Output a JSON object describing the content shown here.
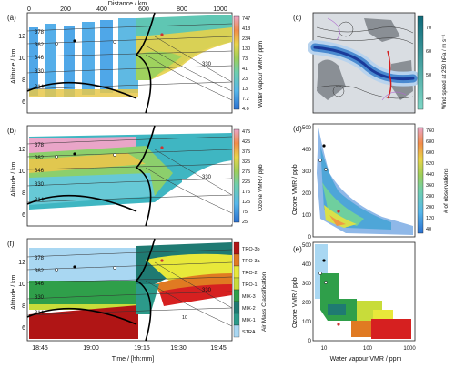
{
  "panels": {
    "a": {
      "tag": "(a)",
      "ylabel": "Altitude / km",
      "cbar_label": "Water vapour VMR / ppm",
      "cbar_ticks": [
        "747",
        "418",
        "234",
        "130",
        "73",
        "41",
        "23",
        "13",
        "7.2",
        "4.0"
      ]
    },
    "b": {
      "tag": "(b)",
      "ylabel": "Altitude / km",
      "cbar_label": "Ozone VMR / ppb",
      "cbar_ticks": [
        "475",
        "425",
        "375",
        "325",
        "275",
        "225",
        "175",
        "125",
        "75",
        "25"
      ]
    },
    "f": {
      "tag": "(f)",
      "ylabel": "Altitude / km",
      "cbar_label": "Air Mass Classification",
      "classes": [
        "TRO-3b",
        "TRO-3a",
        "TRO-2",
        "TRO-1",
        "MIX-3",
        "MIX-2",
        "MIX-1",
        "STRA"
      ]
    },
    "c": {
      "tag": "(c)",
      "cbar_label": "Wind speed at 250 hPa / m s⁻¹",
      "cbar_ticks": [
        "70",
        "60",
        "50",
        "40"
      ]
    },
    "d": {
      "tag": "(d)",
      "ylabel": "Ozone VMR / ppb",
      "cbar_label": "# of observations",
      "cbar_ticks": [
        "760",
        "680",
        "600",
        "520",
        "440",
        "360",
        "280",
        "200",
        "120",
        "40"
      ]
    },
    "e": {
      "tag": "(e)",
      "ylabel": "Ozone VMR / ppb",
      "xlabel": "Water vapour VMR / ppm"
    }
  },
  "top_axis": {
    "label": "Distance / km",
    "ticks": [
      "0",
      "200",
      "400",
      "600",
      "800",
      "1000"
    ]
  },
  "time_axis": {
    "label": "Time / [hh:mm]",
    "ticks": [
      "18:45",
      "19:00",
      "19:15",
      "19:30",
      "19:45"
    ]
  },
  "altitude_ticks": [
    "6",
    "8",
    "10",
    "12"
  ],
  "theta_labels": [
    "378",
    "362",
    "346",
    "330",
    "314",
    "330"
  ],
  "pv_label": "10",
  "scatter_yticks": [
    "0",
    "100",
    "200",
    "300",
    "400",
    "500"
  ],
  "scatter_xticks": [
    "10",
    "100",
    "1000"
  ]
}
